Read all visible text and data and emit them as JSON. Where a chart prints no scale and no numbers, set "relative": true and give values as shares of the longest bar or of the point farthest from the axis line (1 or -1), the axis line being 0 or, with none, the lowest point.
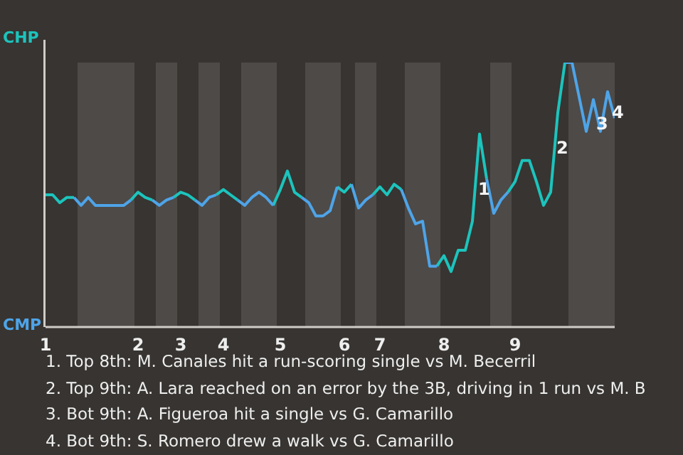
{
  "chart_data": {
    "type": "line",
    "relative": true,
    "categories": [
      "1",
      null,
      null,
      null,
      null,
      null,
      null,
      null,
      null,
      null,
      null,
      null,
      null,
      "2",
      null,
      null,
      null,
      null,
      null,
      "3",
      null,
      null,
      null,
      null,
      null,
      "4",
      null,
      null,
      null,
      null,
      null,
      null,
      null,
      "5",
      null,
      null,
      null,
      null,
      null,
      null,
      null,
      null,
      "6",
      null,
      null,
      null,
      null,
      "7",
      null,
      null,
      null,
      null,
      null,
      null,
      null,
      null,
      "8",
      null,
      null,
      null,
      null,
      null,
      null,
      null,
      null,
      null,
      "9",
      null,
      null,
      null,
      null,
      null,
      null,
      null,
      null,
      null,
      null,
      null,
      null,
      null,
      null
    ],
    "series": [
      {
        "color": "#1cc4bd",
        "values": [
          0.5,
          0.5,
          0.47,
          0.49,
          0.49,
          null,
          null,
          null,
          null,
          null,
          null,
          null,
          0.48,
          0.51,
          0.49,
          0.48,
          null,
          null,
          0.49,
          0.51,
          0.5,
          0.48,
          null,
          null,
          0.5,
          0.52,
          0.5,
          0.48,
          null,
          null,
          null,
          null,
          0.46,
          0.52,
          0.59,
          0.51,
          0.49,
          null,
          null,
          null,
          null,
          0.53,
          0.51,
          0.54,
          null,
          null,
          0.5,
          0.53,
          0.5,
          0.54,
          0.52,
          null,
          null,
          null,
          null,
          0.23,
          0.27,
          0.21,
          0.29,
          0.29,
          0.4,
          0.73,
          0.56,
          null,
          null,
          0.51,
          0.55,
          0.63,
          0.63,
          0.55,
          0.46,
          0.51,
          0.81,
          1,
          null,
          null,
          null,
          null,
          null,
          null,
          null
        ]
      },
      {
        "color": "#4ea4e8",
        "values": [
          null,
          null,
          null,
          null,
          0.49,
          0.46,
          0.49,
          0.46,
          0.46,
          0.46,
          0.46,
          0.46,
          0.48,
          null,
          null,
          0.48,
          0.46,
          0.48,
          0.49,
          null,
          null,
          0.48,
          0.46,
          0.49,
          0.5,
          null,
          null,
          0.48,
          0.46,
          0.49,
          0.51,
          0.49,
          0.46,
          null,
          null,
          null,
          0.49,
          0.47,
          0.42,
          0.42,
          0.44,
          0.53,
          null,
          0.54,
          0.45,
          0.48,
          0.5,
          null,
          null,
          null,
          0.52,
          0.45,
          0.39,
          0.4,
          0.23,
          0.23,
          null,
          null,
          null,
          null,
          null,
          null,
          0.56,
          0.43,
          0.48,
          0.51,
          null,
          null,
          null,
          null,
          null,
          null,
          null,
          1,
          1,
          0.87,
          0.74,
          0.86,
          0.74,
          0.89,
          0.79
        ]
      }
    ],
    "legend": false,
    "marker": "none",
    "line_style": "solid",
    "annotations": [
      "CHP",
      "CMP",
      "1",
      "2",
      "3",
      "4",
      "1. Top 8th: M. Canales hit a run-scoring single vs M. Becerril",
      "2. Top 9th: A. Lara reached on an error by the 3B, driving in 1 run vs M. B",
      "3. Bot 9th: A. Figueroa hit a single vs G. Camarillo",
      "4. Bot 9th: S. Romero drew a walk vs G. Camarillo"
    ]
  }
}
